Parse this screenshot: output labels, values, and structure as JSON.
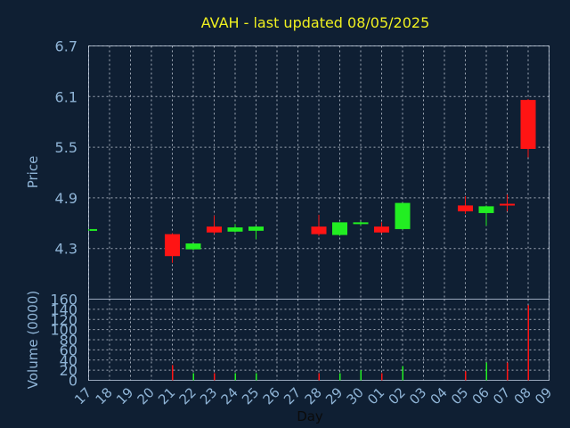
{
  "chart_data": [
    {
      "type": "candlestick",
      "title": "AVAH - last updated 08/05/2025",
      "ylabel": "Price",
      "ylim": [
        3.7,
        6.7
      ],
      "yticks": [
        "6.7",
        "6.1",
        "5.5",
        "4.9",
        "4.3"
      ],
      "ytick_values": [
        6.7,
        6.1,
        5.5,
        4.9,
        4.3
      ],
      "grid": true,
      "candles": [
        {
          "day": "17",
          "open": 4.52,
          "high": 4.53,
          "low": 4.51,
          "close": 4.53
        },
        {
          "day": "21",
          "open": 4.47,
          "high": 4.48,
          "low": 4.13,
          "close": 4.21
        },
        {
          "day": "22",
          "open": 4.29,
          "high": 4.36,
          "low": 4.28,
          "close": 4.36
        },
        {
          "day": "23",
          "open": 4.56,
          "high": 4.69,
          "low": 4.47,
          "close": 4.49
        },
        {
          "day": "24",
          "open": 4.5,
          "high": 4.59,
          "low": 4.49,
          "close": 4.55
        },
        {
          "day": "25",
          "open": 4.51,
          "high": 4.57,
          "low": 4.41,
          "close": 4.56
        },
        {
          "day": "28",
          "open": 4.56,
          "high": 4.7,
          "low": 4.45,
          "close": 4.47
        },
        {
          "day": "29",
          "open": 4.46,
          "high": 4.61,
          "low": 4.45,
          "close": 4.61
        },
        {
          "day": "30",
          "open": 4.59,
          "high": 4.62,
          "low": 4.57,
          "close": 4.61
        },
        {
          "day": "01",
          "open": 4.56,
          "high": 4.61,
          "low": 4.48,
          "close": 4.49
        },
        {
          "day": "02",
          "open": 4.53,
          "high": 4.84,
          "low": 4.52,
          "close": 4.84
        },
        {
          "day": "05",
          "open": 4.81,
          "high": 4.92,
          "low": 4.71,
          "close": 4.74
        },
        {
          "day": "06",
          "open": 4.72,
          "high": 4.81,
          "low": 4.57,
          "close": 4.8
        },
        {
          "day": "07",
          "open": 4.83,
          "high": 4.94,
          "low": 4.74,
          "close": 4.82
        },
        {
          "day": "08",
          "open": 6.06,
          "high": 6.07,
          "low": 5.38,
          "close": 5.48
        }
      ]
    },
    {
      "type": "bar",
      "ylabel": "Volume (0000)",
      "ylim": [
        0,
        160
      ],
      "yticks": [
        "160",
        "140",
        "120",
        "100",
        "80",
        "60",
        "40",
        "20",
        "0"
      ],
      "ytick_values": [
        160,
        140,
        120,
        100,
        80,
        60,
        40,
        20,
        0
      ],
      "xlabel": "Day",
      "categories": [
        "17",
        "18",
        "19",
        "20",
        "21",
        "22",
        "23",
        "24",
        "25",
        "26",
        "27",
        "28",
        "29",
        "30",
        "01",
        "02",
        "03",
        "04",
        "05",
        "06",
        "07",
        "08",
        "09"
      ],
      "volumes": [
        {
          "day": "21",
          "value": 30,
          "direction": "down"
        },
        {
          "day": "22",
          "value": 14,
          "direction": "up"
        },
        {
          "day": "23",
          "value": 14,
          "direction": "down"
        },
        {
          "day": "24",
          "value": 14,
          "direction": "up"
        },
        {
          "day": "25",
          "value": 14,
          "direction": "up"
        },
        {
          "day": "28",
          "value": 14,
          "direction": "down"
        },
        {
          "day": "29",
          "value": 14,
          "direction": "up"
        },
        {
          "day": "30",
          "value": 20,
          "direction": "up"
        },
        {
          "day": "01",
          "value": 14,
          "direction": "down"
        },
        {
          "day": "02",
          "value": 28,
          "direction": "up"
        },
        {
          "day": "05",
          "value": 18,
          "direction": "down"
        },
        {
          "day": "06",
          "value": 35,
          "direction": "up"
        },
        {
          "day": "07",
          "value": 35,
          "direction": "down"
        },
        {
          "day": "08",
          "value": 148,
          "direction": "down"
        }
      ]
    }
  ],
  "colors": {
    "background": "#0f1f33",
    "plot_border": "#9aa8bd",
    "grid": "#c8d0dc",
    "title": "#f0f020",
    "axis_text": "#8fb4d6",
    "xlabel": "#0b0b0b",
    "up": "#22ee22",
    "down": "#ff1414"
  }
}
